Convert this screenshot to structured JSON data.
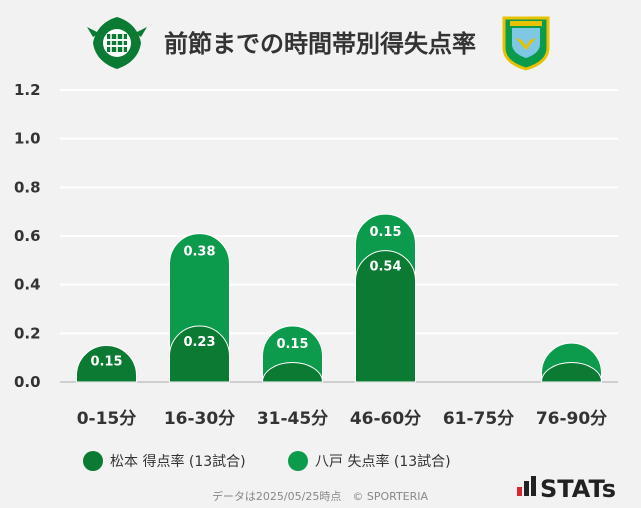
{
  "title": "前節までの時間帯別得失点率",
  "chart_data": {
    "type": "bar",
    "categories": [
      "0-15分",
      "16-30分",
      "31-45分",
      "46-60分",
      "61-75分",
      "76-90分"
    ],
    "series": [
      {
        "name": "松本 得点率 (13試合)",
        "values": [
          0.15,
          0.23,
          0.08,
          0.54,
          0.0,
          0.08
        ],
        "labels": [
          "0.15",
          "0.23",
          "",
          "0.54",
          "",
          ""
        ],
        "color": "#0b7a33"
      },
      {
        "name": "八戸 失点率 (13試合)",
        "values": [
          0.0,
          0.38,
          0.15,
          0.15,
          0.0,
          0.08
        ],
        "labels": [
          "",
          "0.38",
          "0.15",
          "0.15",
          "",
          ""
        ],
        "color": "#0c9a4c"
      }
    ],
    "ylim": [
      0,
      1.2
    ],
    "yticks": [
      "1.2",
      "1.0",
      "0.8",
      "0.6",
      "0.4",
      "0.2",
      "0.0"
    ],
    "grid": true,
    "legend_position": "bottom"
  },
  "footer": "データは2025/05/25時点　© SPORTERIA",
  "brand": "STATs",
  "colors": {
    "home": "#0b7a33",
    "away": "#0c9a4c",
    "grid": "#ffffff",
    "text": "#333333",
    "brand_red": "#d7282f"
  },
  "icons": {
    "home_logo": "matsumoto-crest-icon",
    "away_logo": "hachinohe-crest-icon"
  }
}
